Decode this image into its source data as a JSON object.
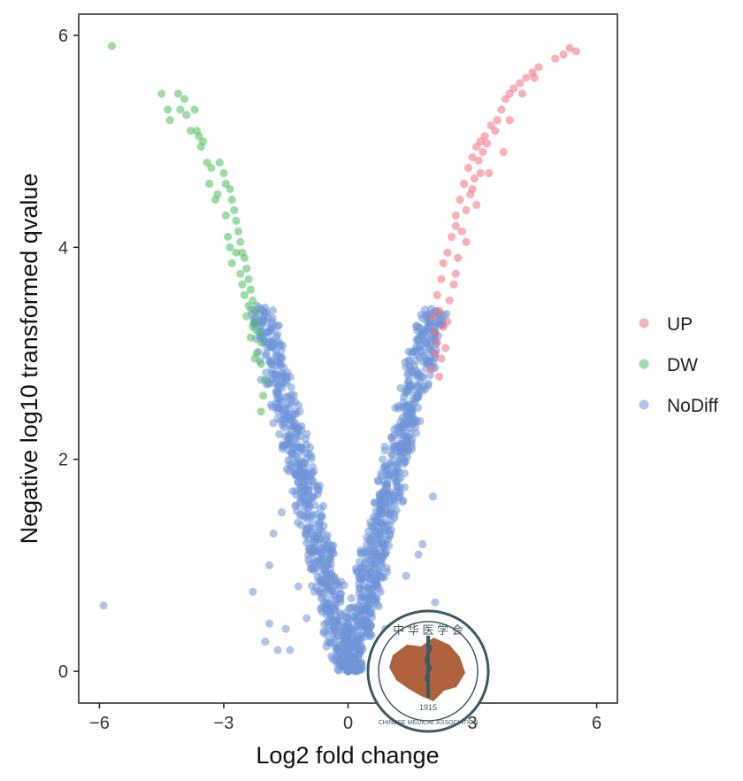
{
  "chart_data": {
    "type": "scatter",
    "title": "",
    "xlabel": "Log2 fold change",
    "ylabel": "Negative log10 transformed qvalue",
    "xlim": [
      -6.5,
      6.5
    ],
    "ylim": [
      -0.3,
      6.2
    ],
    "xticks": [
      -6,
      -3,
      0,
      3,
      6
    ],
    "xtick_labels": [
      "−6",
      "−3",
      "0",
      "3",
      "6"
    ],
    "yticks": [
      0,
      2,
      4,
      6
    ],
    "ytick_labels": [
      "0",
      "2",
      "4",
      "6"
    ],
    "grid": false,
    "legend": {
      "position": "right",
      "entries": [
        {
          "name": "UP",
          "color": "#f2707f"
        },
        {
          "name": "DW",
          "color": "#4fbf5c"
        },
        {
          "name": "NoDiff",
          "color": "#6f96d8"
        }
      ]
    },
    "series": [
      {
        "name": "UP",
        "color": "#f2707f",
        "points": [
          [
            2.0,
            2.85
          ],
          [
            2.1,
            3.0
          ],
          [
            2.2,
            2.78
          ],
          [
            2.1,
            3.2
          ],
          [
            2.2,
            3.4
          ],
          [
            2.15,
            3.55
          ],
          [
            2.25,
            3.7
          ],
          [
            2.3,
            3.85
          ],
          [
            2.4,
            3.95
          ],
          [
            2.5,
            4.1
          ],
          [
            2.6,
            4.3
          ],
          [
            2.7,
            4.45
          ],
          [
            2.8,
            4.6
          ],
          [
            2.9,
            4.75
          ],
          [
            3.0,
            4.85
          ],
          [
            3.1,
            4.95
          ],
          [
            3.2,
            5.0
          ],
          [
            3.3,
            5.05
          ],
          [
            3.45,
            5.15
          ],
          [
            3.6,
            5.2
          ],
          [
            3.7,
            5.3
          ],
          [
            3.8,
            5.4
          ],
          [
            3.9,
            5.45
          ],
          [
            4.0,
            5.5
          ],
          [
            4.15,
            5.55
          ],
          [
            4.3,
            5.6
          ],
          [
            4.45,
            5.65
          ],
          [
            4.6,
            5.7
          ],
          [
            5.0,
            5.78
          ],
          [
            5.2,
            5.82
          ],
          [
            5.35,
            5.88
          ],
          [
            5.5,
            5.85
          ],
          [
            2.3,
            3.25
          ],
          [
            2.45,
            3.5
          ],
          [
            2.55,
            3.65
          ],
          [
            2.65,
            3.9
          ],
          [
            2.75,
            4.15
          ],
          [
            2.85,
            4.35
          ],
          [
            2.95,
            4.5
          ],
          [
            3.05,
            4.65
          ],
          [
            3.15,
            4.82
          ],
          [
            3.25,
            4.9
          ],
          [
            3.35,
            4.98
          ],
          [
            3.55,
            5.1
          ],
          [
            3.75,
            4.9
          ],
          [
            2.35,
            3.05
          ],
          [
            2.05,
            3.35
          ],
          [
            2.15,
            3.1
          ],
          [
            3.9,
            5.2
          ],
          [
            4.2,
            5.45
          ],
          [
            4.5,
            5.6
          ],
          [
            2.4,
            3.3
          ],
          [
            2.6,
            3.75
          ],
          [
            3.0,
            4.55
          ],
          [
            3.2,
            4.7
          ],
          [
            2.25,
            2.95
          ],
          [
            2.6,
            4.2
          ],
          [
            2.85,
            4.05
          ],
          [
            3.1,
            4.4
          ],
          [
            3.4,
            4.7
          ]
        ]
      },
      {
        "name": "DW",
        "color": "#4fbf5c",
        "points": [
          [
            -5.7,
            5.9
          ],
          [
            -4.5,
            5.45
          ],
          [
            -4.35,
            5.3
          ],
          [
            -4.1,
            5.45
          ],
          [
            -4.05,
            5.3
          ],
          [
            -3.95,
            5.4
          ],
          [
            -3.9,
            5.25
          ],
          [
            -3.7,
            5.3
          ],
          [
            -3.65,
            5.1
          ],
          [
            -3.6,
            5.05
          ],
          [
            -3.5,
            5.0
          ],
          [
            -3.4,
            4.8
          ],
          [
            -3.3,
            4.75
          ],
          [
            -3.1,
            4.8
          ],
          [
            -3.0,
            4.7
          ],
          [
            -2.95,
            4.6
          ],
          [
            -2.85,
            4.55
          ],
          [
            -2.8,
            4.45
          ],
          [
            -2.75,
            4.35
          ],
          [
            -2.7,
            4.25
          ],
          [
            -2.65,
            4.15
          ],
          [
            -2.6,
            4.05
          ],
          [
            -2.55,
            3.95
          ],
          [
            -2.5,
            3.9
          ],
          [
            -2.45,
            3.8
          ],
          [
            -2.4,
            3.7
          ],
          [
            -2.35,
            3.6
          ],
          [
            -2.3,
            3.5
          ],
          [
            -2.25,
            3.4
          ],
          [
            -2.2,
            3.3
          ],
          [
            -2.15,
            3.2
          ],
          [
            -2.1,
            3.1
          ],
          [
            -2.2,
            3.0
          ],
          [
            -2.1,
            2.9
          ],
          [
            -2.05,
            2.6
          ],
          [
            -2.1,
            2.45
          ],
          [
            -3.15,
            4.5
          ],
          [
            -2.95,
            4.3
          ],
          [
            -2.9,
            4.1
          ],
          [
            -2.8,
            3.85
          ],
          [
            -2.6,
            3.75
          ],
          [
            -2.5,
            3.55
          ],
          [
            -2.4,
            3.45
          ],
          [
            -2.3,
            3.25
          ],
          [
            -3.35,
            4.6
          ],
          [
            -3.2,
            4.45
          ],
          [
            -2.7,
            3.95
          ],
          [
            -2.55,
            3.65
          ],
          [
            -2.35,
            3.15
          ],
          [
            -4.3,
            5.2
          ],
          [
            -3.8,
            5.1
          ],
          [
            -3.55,
            4.95
          ],
          [
            -2.85,
            4.0
          ],
          [
            -2.45,
            3.35
          ],
          [
            -2.25,
            2.95
          ],
          [
            -2.0,
            2.75
          ]
        ]
      },
      {
        "name": "NoDiff",
        "color": "#6f96d8",
        "outliers": [
          [
            -5.9,
            0.62
          ],
          [
            -2.3,
            0.75
          ],
          [
            -2.0,
            0.28
          ],
          [
            -1.9,
            0.45
          ],
          [
            -1.5,
            0.4
          ],
          [
            -1.2,
            0.8
          ],
          [
            1.5,
            0.5
          ],
          [
            1.9,
            0.35
          ],
          [
            2.1,
            0.65
          ],
          [
            2.05,
            1.65
          ],
          [
            1.8,
            1.2
          ],
          [
            -1.8,
            1.3
          ],
          [
            -1.6,
            1.5
          ],
          [
            -1.4,
            0.2
          ],
          [
            1.2,
            0.25
          ],
          [
            1.6,
            0.15
          ],
          [
            -1.7,
            0.2
          ],
          [
            1.4,
            0.9
          ],
          [
            -1.0,
            0.5
          ],
          [
            0.9,
            0.4
          ],
          [
            -2.2,
            3.45
          ],
          [
            2.0,
            3.3
          ],
          [
            1.95,
            2.95
          ],
          [
            -2.1,
            2.75
          ],
          [
            1.7,
            1.1
          ],
          [
            -1.9,
            1.0
          ]
        ]
      }
    ],
    "watermark": {
      "type": "seal",
      "text_top": "中 华 医 学 会",
      "text_bottom": "CHINESE MEDICAL ASSOCIATION",
      "year": "1915"
    }
  }
}
